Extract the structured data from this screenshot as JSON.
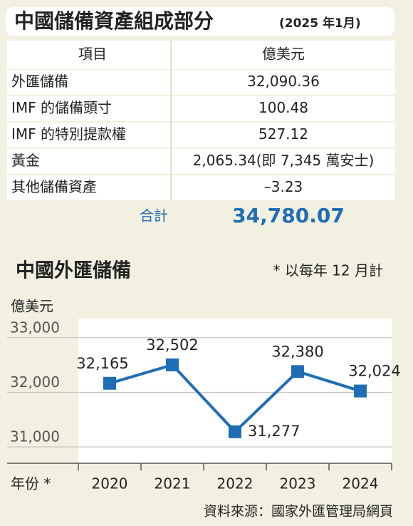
{
  "header": {
    "title": "中國儲備資產組成部分",
    "title_note": "(2025 年1月)"
  },
  "table": {
    "header": [
      "項目",
      "億美元"
    ],
    "rows": [
      [
        "外匯儲備",
        "32,090.36"
      ],
      [
        "IMF 的儲備頭寸",
        "100.48"
      ],
      [
        "IMF 的特別提款權",
        "527.12"
      ],
      [
        "黃金",
        "2,065.34(即 7,345 萬安士)"
      ],
      [
        "其他儲備資產",
        "–3.23"
      ]
    ],
    "total": [
      "合計",
      "34,780.07"
    ]
  },
  "chart_data": {
    "type": "line",
    "title": "中國外匯儲備",
    "note": "* 以每年 12 月計",
    "y_label": "億美元",
    "x_label": "年份 *",
    "categories": [
      "2020",
      "2021",
      "2022",
      "2023",
      "2024"
    ],
    "series": [
      {
        "name": "中國外匯儲備",
        "color": "#1f6db5",
        "values": [
          32165,
          32502,
          31277,
          32380,
          32024
        ],
        "value_labels": [
          "32,165",
          "32,502",
          "31,277",
          "32,380",
          "32,024"
        ]
      }
    ],
    "ylim": [
      30700,
      33350
    ],
    "yticks": [
      {
        "value": 31000,
        "label": "31,000"
      },
      {
        "value": 32000,
        "label": "32,000"
      },
      {
        "value": 33000,
        "label": "33,000"
      }
    ],
    "grid": true
  },
  "footer": {
    "source": "資料來源：國家外匯管理局網頁"
  }
}
